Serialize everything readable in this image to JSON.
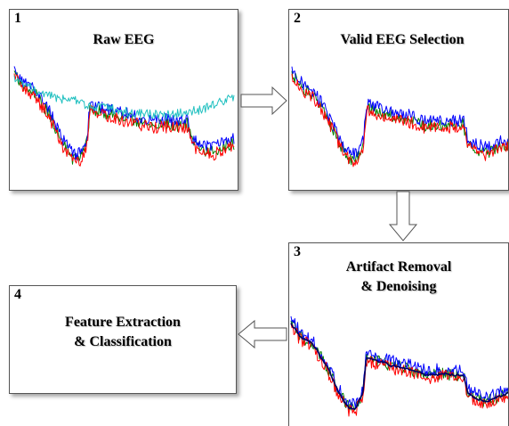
{
  "panels": [
    {
      "number": "1",
      "title": "Raw EEG"
    },
    {
      "number": "2",
      "title": "Valid EEG Selection"
    },
    {
      "number": "3",
      "title_line1": "Artifact Removal",
      "title_line2": "& Denoising"
    },
    {
      "number": "4",
      "title_line1": "Feature Extraction",
      "title_line2": "& Classification"
    }
  ],
  "colors": {
    "blue": "#0000ff",
    "green": "#008000",
    "red": "#ff0000",
    "cyan": "#20c0c0",
    "dark_blue": "#000060"
  }
}
